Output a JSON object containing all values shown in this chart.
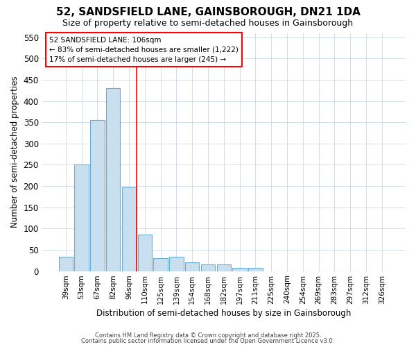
{
  "title": "52, SANDSFIELD LANE, GAINSBOROUGH, DN21 1DA",
  "subtitle": "Size of property relative to semi-detached houses in Gainsborough",
  "xlabel": "Distribution of semi-detached houses by size in Gainsborough",
  "ylabel": "Number of semi-detached properties",
  "categories": [
    "39sqm",
    "53sqm",
    "67sqm",
    "82sqm",
    "96sqm",
    "110sqm",
    "125sqm",
    "139sqm",
    "154sqm",
    "168sqm",
    "182sqm",
    "197sqm",
    "211sqm",
    "225sqm",
    "240sqm",
    "254sqm",
    "269sqm",
    "283sqm",
    "297sqm",
    "312sqm",
    "326sqm"
  ],
  "values": [
    33,
    250,
    355,
    430,
    197,
    85,
    30,
    33,
    20,
    15,
    15,
    8,
    8,
    0,
    0,
    0,
    0,
    0,
    0,
    0,
    0
  ],
  "bar_color": "#c8dff0",
  "bar_edge_color": "#6aaed6",
  "red_line_x": 4.5,
  "annotation_title": "52 SANDSFIELD LANE: 106sqm",
  "annotation_line1": "← 83% of semi-detached houses are smaller (1,222)",
  "annotation_line2": "17% of semi-detached houses are larger (245) →",
  "ylim": [
    0,
    560
  ],
  "yticks": [
    0,
    50,
    100,
    150,
    200,
    250,
    300,
    350,
    400,
    450,
    500,
    550
  ],
  "background_color": "#ffffff",
  "plot_bg_color": "#ffffff",
  "grid_color": "#d0dce8",
  "title_fontsize": 11,
  "subtitle_fontsize": 9,
  "footer1": "Contains HM Land Registry data © Crown copyright and database right 2025.",
  "footer2": "Contains public sector information licensed under the Open Government Licence v3.0."
}
